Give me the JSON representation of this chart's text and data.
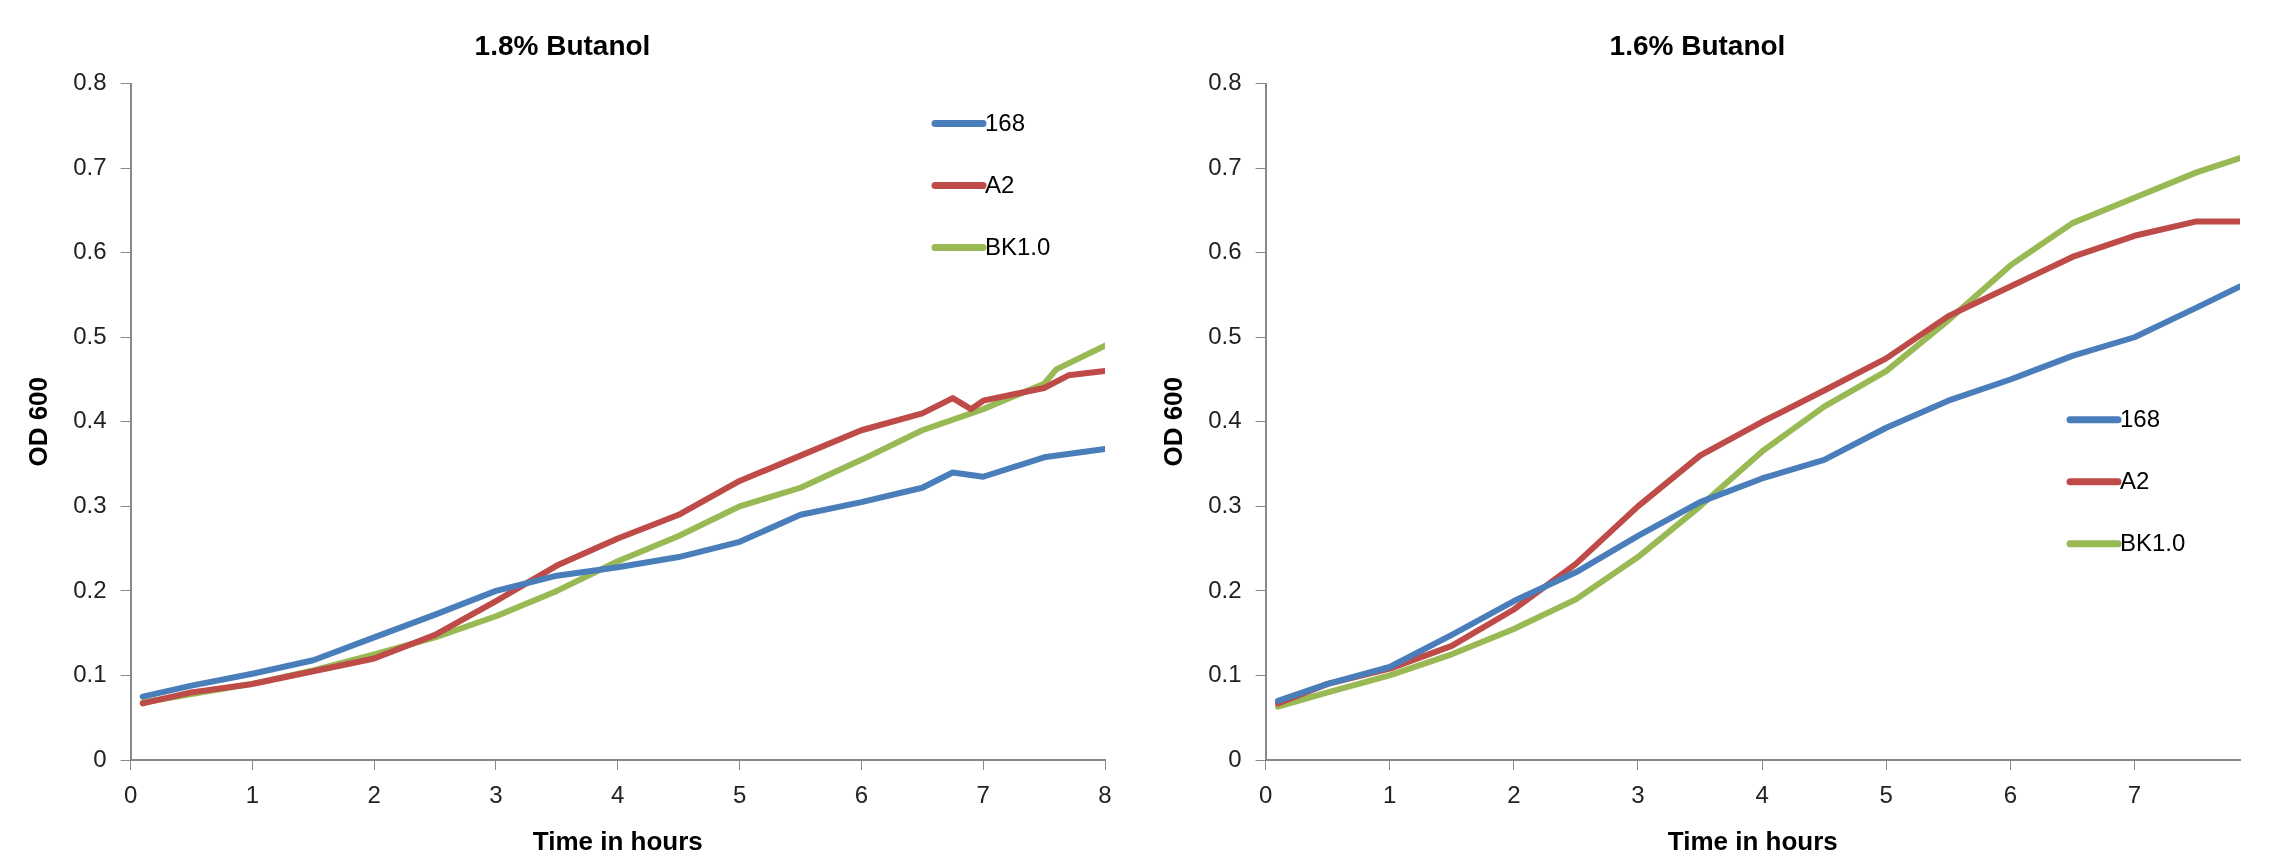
{
  "chart_data": [
    {
      "type": "line",
      "title": "1.8% Butanol",
      "xlabel": "Time in hours",
      "ylabel": "OD 600",
      "xlim": [
        0,
        8
      ],
      "xticks": [
        0,
        1,
        2,
        3,
        4,
        5,
        6,
        7,
        8
      ],
      "ylim": [
        0,
        0.8
      ],
      "yticks": [
        0,
        0.1,
        0.2,
        0.3,
        0.4,
        0.5,
        0.6,
        0.7,
        0.8
      ],
      "grid": false,
      "legend": "top right",
      "marker": "none",
      "line_style": "solid",
      "series": [
        {
          "name": "168",
          "color": "#4a7ebb",
          "x": [
            0.1,
            0.5,
            1,
            1.5,
            2,
            2.5,
            3,
            3.5,
            4,
            4.5,
            5,
            5.5,
            6,
            6.5,
            6.75,
            7,
            7.5,
            8
          ],
          "values": [
            0.075,
            0.088,
            0.102,
            0.118,
            0.145,
            0.172,
            0.2,
            0.218,
            0.228,
            0.24,
            0.258,
            0.29,
            0.305,
            0.322,
            0.34,
            0.335,
            0.358,
            0.368
          ]
        },
        {
          "name": "A2",
          "color": "#be4b48",
          "x": [
            0.1,
            0.5,
            1,
            1.5,
            2,
            2.5,
            3,
            3.5,
            4,
            4.5,
            5,
            5.5,
            6,
            6.5,
            6.75,
            6.9,
            7,
            7.5,
            7.7,
            8
          ],
          "values": [
            0.067,
            0.08,
            0.09,
            0.105,
            0.12,
            0.148,
            0.188,
            0.23,
            0.262,
            0.29,
            0.33,
            0.36,
            0.39,
            0.41,
            0.428,
            0.415,
            0.425,
            0.44,
            0.455,
            0.46
          ]
        },
        {
          "name": "BK1.0",
          "color": "#98b954",
          "x": [
            0.1,
            0.5,
            1,
            1.5,
            2,
            2.5,
            3,
            3.5,
            4,
            4.5,
            5,
            5.5,
            6,
            6.5,
            7,
            7.5,
            7.6,
            8
          ],
          "values": [
            0.068,
            0.078,
            0.09,
            0.106,
            0.125,
            0.145,
            0.17,
            0.2,
            0.235,
            0.265,
            0.3,
            0.322,
            0.355,
            0.39,
            0.415,
            0.445,
            0.462,
            0.49
          ]
        }
      ]
    },
    {
      "type": "line",
      "title": "1.6% Butanol",
      "xlabel": "Time in hours",
      "ylabel": "OD 600",
      "xlim": [
        0,
        7.85
      ],
      "xticks": [
        0,
        1,
        2,
        3,
        4,
        5,
        6,
        7
      ],
      "ylim": [
        0,
        0.8
      ],
      "yticks": [
        0,
        0.1,
        0.2,
        0.3,
        0.4,
        0.5,
        0.6,
        0.7,
        0.8
      ],
      "grid": false,
      "legend": "right",
      "marker": "none",
      "line_style": "solid",
      "series": [
        {
          "name": "168",
          "color": "#4a7ebb",
          "x": [
            0.1,
            0.5,
            1,
            1.5,
            2,
            2.5,
            3,
            3.5,
            4,
            4.5,
            5,
            5.5,
            6,
            6.5,
            7,
            7.5,
            7.85
          ],
          "values": [
            0.07,
            0.09,
            0.11,
            0.148,
            0.188,
            0.222,
            0.265,
            0.305,
            0.333,
            0.355,
            0.393,
            0.425,
            0.45,
            0.478,
            0.5,
            0.535,
            0.56
          ]
        },
        {
          "name": "A2",
          "color": "#be4b48",
          "x": [
            0.1,
            0.5,
            1,
            1.5,
            2,
            2.5,
            3,
            3.5,
            4,
            4.5,
            5,
            5.5,
            6,
            6.5,
            7,
            7.5,
            7.85
          ],
          "values": [
            0.067,
            0.09,
            0.108,
            0.135,
            0.178,
            0.232,
            0.3,
            0.36,
            0.4,
            0.437,
            0.475,
            0.525,
            0.56,
            0.595,
            0.62,
            0.637,
            0.637
          ]
        },
        {
          "name": "BK1.0",
          "color": "#98b954",
          "x": [
            0.1,
            0.5,
            1,
            1.5,
            2,
            2.5,
            3,
            3.5,
            4,
            4.5,
            5,
            5.5,
            6,
            6.5,
            7,
            7.5,
            7.85
          ],
          "values": [
            0.063,
            0.08,
            0.1,
            0.125,
            0.155,
            0.19,
            0.24,
            0.3,
            0.365,
            0.418,
            0.46,
            0.52,
            0.585,
            0.635,
            0.665,
            0.695,
            0.712
          ]
        }
      ]
    }
  ]
}
